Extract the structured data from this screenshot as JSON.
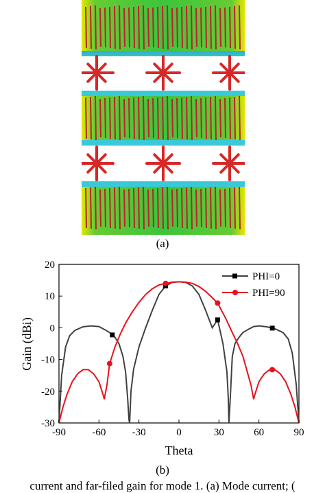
{
  "panels": {
    "a_label": "(a)",
    "b_label": "(b)",
    "caption": "current and far-filed gain for mode 1. (a) Mode current; ("
  },
  "image_a": {
    "description_colors": {
      "field_high": "#f2e600",
      "field_mid": "#33cc33",
      "field_low": "#1e90ff",
      "arrow": "#d62828"
    }
  },
  "chart_data": {
    "type": "line",
    "xlabel": "Theta",
    "ylabel": "Gain (dBi)",
    "xlim": [
      -90,
      90
    ],
    "ylim": [
      -30,
      20
    ],
    "xticks": [
      -90,
      -60,
      -30,
      0,
      30,
      60,
      90
    ],
    "yticks": [
      -30,
      -20,
      -10,
      0,
      10,
      20
    ],
    "legend_position": "top-right",
    "series": [
      {
        "name": "PHI=0",
        "color": "#404040",
        "marker": "square",
        "marker_color": "#000000",
        "markers_x": [
          -50,
          -10,
          29,
          70
        ],
        "x": [
          -90,
          -88,
          -85,
          -82,
          -78,
          -72,
          -66,
          -60,
          -56,
          -52,
          -48,
          -45,
          -42,
          -40,
          -38.5,
          -37.5,
          -37,
          -36,
          -34,
          -30,
          -25,
          -20,
          -15,
          -10,
          -5,
          0,
          5,
          10,
          15,
          20,
          25,
          29,
          33,
          36,
          37,
          37.5,
          38.5,
          40,
          42,
          45,
          48,
          52,
          56,
          60,
          66,
          72,
          78,
          82,
          85,
          88,
          90
        ],
        "y": [
          -30,
          -15,
          -6,
          -2.5,
          -0.8,
          0.3,
          0.6,
          0.4,
          -0.5,
          -1.5,
          -3,
          -5,
          -9,
          -14,
          -22,
          -29,
          -30,
          -20,
          -13,
          -6,
          0,
          5.5,
          10.5,
          13.2,
          14.3,
          14.5,
          14.3,
          13.2,
          10.5,
          5.5,
          0,
          2.5,
          -5,
          -14,
          -22,
          -30,
          -22,
          -9,
          -5,
          -3,
          -1.5,
          -0.5,
          0.4,
          0.6,
          0.3,
          -0.3,
          -1.5,
          -3.5,
          -8,
          -18,
          -30
        ]
      },
      {
        "name": "PHI=90",
        "color": "#e8121d",
        "marker": "circle",
        "marker_color": "#e8121d",
        "markers_x": [
          -52,
          -10,
          29,
          70
        ],
        "x": [
          -90,
          -87,
          -84,
          -80,
          -76,
          -72,
          -68,
          -64,
          -60,
          -57,
          -56,
          -54,
          -52,
          -48,
          -44,
          -40,
          -35,
          -30,
          -25,
          -20,
          -15,
          -10,
          -5,
          0,
          5,
          10,
          15,
          20,
          25,
          29,
          35,
          40,
          44,
          48,
          52,
          54,
          56,
          57,
          60,
          64,
          68,
          72,
          76,
          80,
          84,
          87,
          90
        ],
        "y": [
          -30,
          -25,
          -21,
          -17,
          -14.5,
          -13.2,
          -13.2,
          -14.5,
          -17,
          -21,
          -22.5,
          -18,
          -11.3,
          -6,
          -2,
          1.5,
          5,
          8,
          10.5,
          12.3,
          13.5,
          14,
          14.4,
          14.5,
          14.4,
          14,
          13,
          11.5,
          9.5,
          7.8,
          3,
          -1.5,
          -5,
          -9,
          -15,
          -18,
          -22.5,
          -21,
          -17,
          -14.5,
          -13.2,
          -13.2,
          -14.5,
          -17,
          -21,
          -25,
          -30
        ]
      }
    ]
  }
}
